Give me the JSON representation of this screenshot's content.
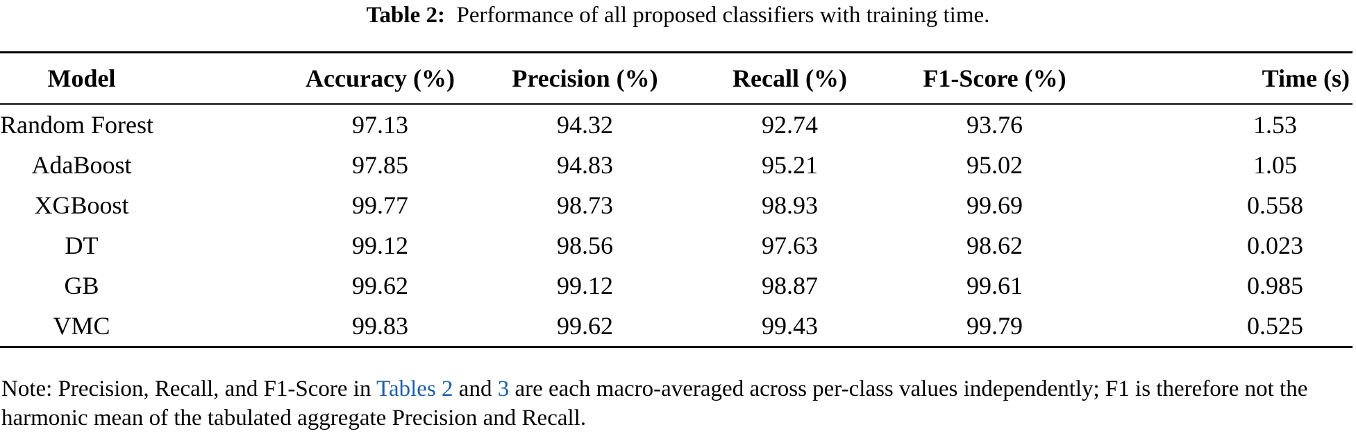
{
  "caption": {
    "label": "Table 2:",
    "text": "Performance of all proposed classifiers with training time."
  },
  "table": {
    "headers": [
      "Model",
      "Accuracy (%)",
      "Precision (%)",
      "Recall (%)",
      "F1-Score (%)",
      "Time (s)"
    ],
    "rows": [
      [
        "Random Forest",
        "97.13",
        "94.32",
        "92.74",
        "93.76",
        "1.53"
      ],
      [
        "AdaBoost",
        "97.85",
        "94.83",
        "95.21",
        "95.02",
        "1.05"
      ],
      [
        "XGBoost",
        "99.77",
        "98.73",
        "98.93",
        "99.69",
        "0.558"
      ],
      [
        "DT",
        "99.12",
        "98.56",
        "97.63",
        "98.62",
        "0.023"
      ],
      [
        "GB",
        "99.62",
        "99.12",
        "98.87",
        "99.61",
        "0.985"
      ],
      [
        "VMC",
        "99.83",
        "99.62",
        "99.43",
        "99.79",
        "0.525"
      ]
    ]
  },
  "note": {
    "part1": "Note: Precision, Recall, and F1-Score in ",
    "ref1": "Tables 2",
    "part2": " and ",
    "ref2": "3",
    "part3": " are each macro-averaged across per-class values independently; F1 is therefore not the harmonic mean of the tabulated aggregate Precision and Recall."
  },
  "colors": {
    "text": "#000000",
    "link": "#1f5fa8",
    "background": "#ffffff"
  }
}
